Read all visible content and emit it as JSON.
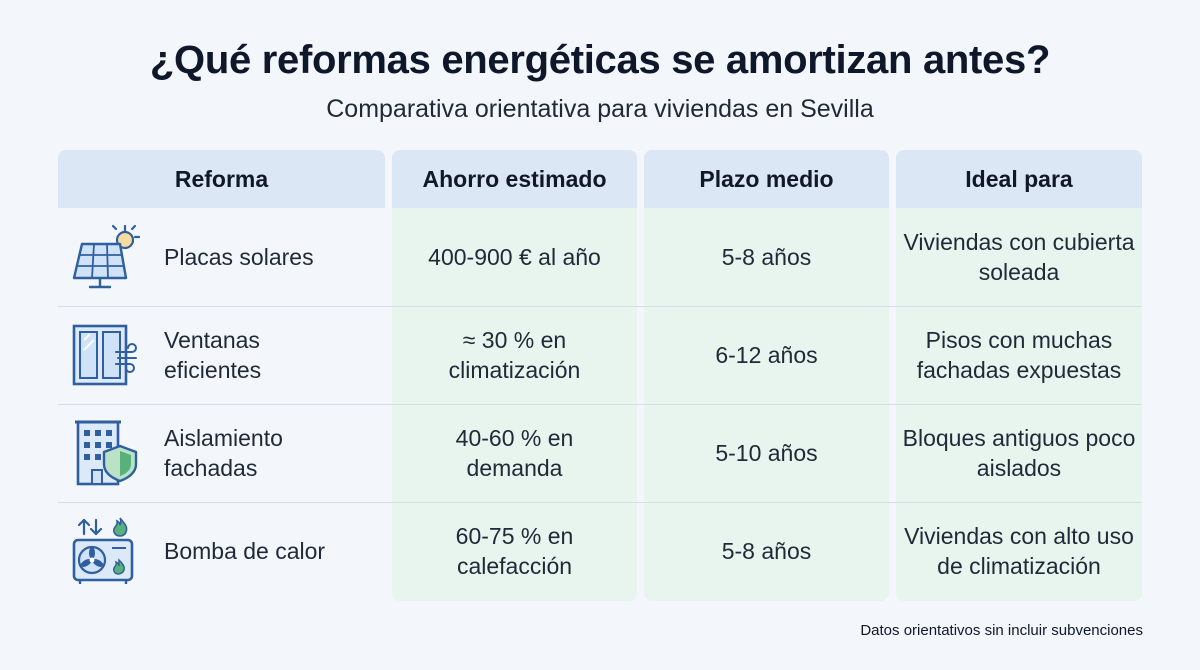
{
  "title": "¿Qué reformas energéticas se amortizan antes?",
  "subtitle": "Comparativa orientativa para viviendas en Sevilla",
  "headers": [
    "Reforma",
    "Ahorro estimado",
    "Plazo medio",
    "Ideal para"
  ],
  "rows": [
    {
      "icon": "solar-panel-icon",
      "reforma": "Placas solares",
      "ahorro": "400-900 € al año",
      "plazo": "5-8 años",
      "ideal": "Viviendas con cubierta soleada"
    },
    {
      "icon": "window-icon",
      "reforma": "Ventanas eficientes",
      "ahorro": "≈ 30 % en climatización",
      "plazo": "6-12 años",
      "ideal": "Pisos con muchas fachadas expuestas"
    },
    {
      "icon": "building-shield-icon",
      "reforma": "Aislamiento fachadas",
      "ahorro": "40-60 % en demanda",
      "plazo": "5-10 años",
      "ideal": "Bloques antiguos poco aislados"
    },
    {
      "icon": "heat-pump-icon",
      "reforma": "Bomba de calor",
      "ahorro": "60-75 % en calefacción",
      "plazo": "5-8 años",
      "ideal": "Viviendas con alto uso de climatización"
    }
  ],
  "footnote": "Datos orientativos sin incluir subvenciones",
  "colors": {
    "header_bg": "#dce7f6",
    "column_bg": "#e8f4ee",
    "icon_stroke": "#2f5f9e",
    "icon_fill": "#cfe2f7",
    "accent_green": "#58b07a"
  }
}
